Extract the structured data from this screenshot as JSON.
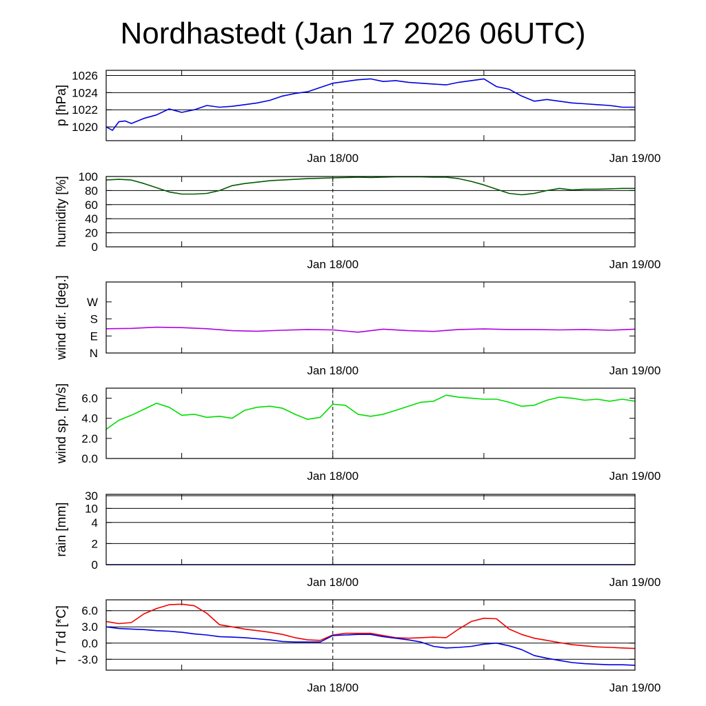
{
  "title": "Nordhastedt (Jan 17 2026 06UTC)",
  "x_tick_labels": [
    "Jan 18/00",
    "Jan 19/00"
  ],
  "chart_data": [
    {
      "type": "line",
      "ylabel": "p [hPa]",
      "ylim": [
        1018.4,
        1026.6
      ],
      "yticks": [
        1020,
        1022,
        1024,
        1026
      ],
      "ytick_labels": [
        "1020",
        "1022",
        "1024",
        "1026"
      ],
      "grid": true,
      "series": [
        {
          "color": "#0000e0",
          "x": [
            0,
            0.5,
            1,
            1.5,
            2,
            3,
            4,
            5,
            6,
            7,
            8,
            9,
            10,
            11,
            12,
            13,
            14,
            15,
            16,
            17,
            18,
            19,
            20,
            21,
            22,
            23,
            24,
            25,
            26,
            27,
            28,
            29,
            30,
            31,
            32,
            33,
            34,
            35,
            36,
            37,
            38,
            39,
            40,
            41,
            42
          ],
          "y": [
            1020.0,
            1019.6,
            1020.6,
            1020.7,
            1020.4,
            1021.0,
            1021.4,
            1022.1,
            1021.7,
            1022.0,
            1022.5,
            1022.3,
            1022.4,
            1022.6,
            1022.8,
            1023.1,
            1023.6,
            1023.9,
            1024.1,
            1024.6,
            1025.1,
            1025.3,
            1025.5,
            1025.6,
            1025.3,
            1025.4,
            1025.2,
            1025.1,
            1025.0,
            1024.9,
            1025.2,
            1025.4,
            1025.6,
            1024.7,
            1024.4,
            1023.6,
            1023.0,
            1023.2,
            1023.0,
            1022.8,
            1022.7,
            1022.6,
            1022.5,
            1022.3,
            1022.3
          ]
        }
      ]
    },
    {
      "type": "line",
      "ylabel": "humidity [%]",
      "ylim": [
        0,
        100
      ],
      "yticks": [
        0,
        20,
        40,
        60,
        80,
        100
      ],
      "ytick_labels": [
        "0",
        "20",
        "40",
        "60",
        "80",
        "100"
      ],
      "grid": true,
      "series": [
        {
          "color": "#005a00",
          "x": [
            0,
            1,
            2,
            3,
            4,
            5,
            6,
            7,
            8,
            9,
            10,
            11,
            12,
            13,
            14,
            15,
            16,
            17,
            18,
            19,
            20,
            21,
            22,
            23,
            24,
            25,
            26,
            27,
            28,
            29,
            30,
            31,
            32,
            33,
            34,
            35,
            36,
            37,
            38,
            39,
            40,
            41,
            42
          ],
          "y": [
            95,
            96,
            95,
            90,
            84,
            78,
            75,
            75,
            76,
            80,
            87,
            90,
            92,
            94,
            95,
            96,
            97,
            97.5,
            98,
            98.5,
            99,
            98.5,
            99,
            99.5,
            99.5,
            99.5,
            99,
            99,
            97,
            93,
            88,
            82,
            76,
            74,
            76,
            80,
            83,
            81,
            82,
            82,
            82.5,
            83,
            83
          ]
        }
      ]
    },
    {
      "type": "line",
      "ylabel": "wind dir. [deg.]",
      "ylim": [
        0,
        375
      ],
      "yticks": [
        0,
        90,
        180,
        270
      ],
      "ytick_labels": [
        "N",
        "E",
        "S",
        "W"
      ],
      "grid": false,
      "series": [
        {
          "color": "#b000e0",
          "x": [
            0,
            2,
            4,
            6,
            8,
            10,
            12,
            14,
            16,
            18,
            20,
            22,
            24,
            26,
            28,
            30,
            32,
            34,
            36,
            38,
            40,
            42
          ],
          "y": [
            128,
            130,
            136,
            134,
            128,
            118,
            115,
            120,
            124,
            122,
            110,
            126,
            118,
            114,
            124,
            127,
            124,
            124,
            122,
            124,
            120,
            126
          ]
        }
      ]
    },
    {
      "type": "line",
      "ylabel": "wind sp. [m/s]",
      "ylim": [
        0,
        7
      ],
      "yticks": [
        0,
        2,
        4,
        6
      ],
      "ytick_labels": [
        "0.0",
        "2.0",
        "4.0",
        "6.0"
      ],
      "grid": false,
      "series": [
        {
          "color": "#00dd00",
          "x": [
            0,
            1,
            2,
            3,
            4,
            5,
            6,
            7,
            8,
            9,
            10,
            11,
            12,
            13,
            14,
            15,
            16,
            17,
            18,
            19,
            20,
            21,
            22,
            23,
            24,
            25,
            26,
            27,
            28,
            29,
            30,
            31,
            32,
            33,
            34,
            35,
            36,
            37,
            38,
            39,
            40,
            41,
            42
          ],
          "y": [
            2.9,
            3.8,
            4.3,
            4.9,
            5.5,
            5.1,
            4.3,
            4.4,
            4.1,
            4.2,
            4.0,
            4.8,
            5.1,
            5.2,
            5.0,
            4.4,
            3.9,
            4.1,
            5.4,
            5.3,
            4.4,
            4.2,
            4.4,
            4.8,
            5.2,
            5.6,
            5.7,
            6.3,
            6.1,
            6.0,
            5.9,
            5.9,
            5.6,
            5.2,
            5.3,
            5.8,
            6.1,
            6.0,
            5.8,
            5.9,
            5.7,
            5.9,
            5.7
          ]
        }
      ]
    },
    {
      "type": "line",
      "ylabel": "rain [mm]",
      "ylim": [
        0,
        30
      ],
      "yticks": [
        0,
        2,
        4,
        10,
        30
      ],
      "ytick_labels": [
        "0",
        "2",
        "4",
        "10",
        "30"
      ],
      "grid": true,
      "series": [
        {
          "color": "#0000e0",
          "x": [
            0,
            42
          ],
          "y": [
            0,
            0
          ]
        }
      ]
    },
    {
      "type": "line",
      "ylabel": "T / Td [*C]",
      "ylim": [
        -5,
        8
      ],
      "yticks": [
        -3,
        0,
        3,
        6
      ],
      "ytick_labels": [
        "-3.0",
        "0.0",
        "3.0",
        "6.0"
      ],
      "grid": true,
      "series": [
        {
          "color": "#ee0000",
          "x": [
            0,
            1,
            2,
            3,
            4,
            5,
            6,
            7,
            8,
            9,
            10,
            11,
            12,
            13,
            14,
            15,
            16,
            17,
            18,
            19,
            20,
            21,
            22,
            23,
            24,
            25,
            26,
            27,
            28,
            29,
            30,
            31,
            32,
            33,
            34,
            35,
            36,
            37,
            38,
            39,
            40,
            41,
            42
          ],
          "y": [
            4.0,
            3.6,
            3.8,
            5.4,
            6.4,
            7.1,
            7.2,
            6.9,
            5.5,
            3.4,
            3.0,
            2.6,
            2.3,
            2.0,
            1.6,
            1.0,
            0.6,
            0.5,
            1.5,
            1.8,
            1.8,
            1.8,
            1.4,
            1.0,
            0.9,
            1.0,
            1.1,
            1.0,
            2.6,
            4.0,
            4.6,
            4.5,
            2.6,
            1.6,
            0.9,
            0.5,
            0.1,
            -0.3,
            -0.5,
            -0.7,
            -0.8,
            -0.9,
            -1.0
          ]
        },
        {
          "color": "#0000e0",
          "x": [
            0,
            1,
            2,
            3,
            4,
            5,
            6,
            7,
            8,
            9,
            10,
            11,
            12,
            13,
            14,
            15,
            16,
            17,
            18,
            19,
            20,
            21,
            22,
            23,
            24,
            25,
            26,
            27,
            28,
            29,
            30,
            31,
            32,
            33,
            34,
            35,
            36,
            37,
            38,
            39,
            40,
            41,
            42
          ],
          "y": [
            3.0,
            2.7,
            2.6,
            2.5,
            2.3,
            2.2,
            2.0,
            1.7,
            1.5,
            1.2,
            1.1,
            1.0,
            0.8,
            0.6,
            0.3,
            0.2,
            0.2,
            0.2,
            1.4,
            1.5,
            1.6,
            1.6,
            1.2,
            0.9,
            0.6,
            0.2,
            -0.6,
            -0.9,
            -0.8,
            -0.6,
            -0.2,
            0.0,
            -0.5,
            -1.2,
            -2.3,
            -2.8,
            -3.2,
            -3.6,
            -3.8,
            -3.9,
            -4.0,
            -4.0,
            -4.1
          ]
        }
      ]
    }
  ]
}
